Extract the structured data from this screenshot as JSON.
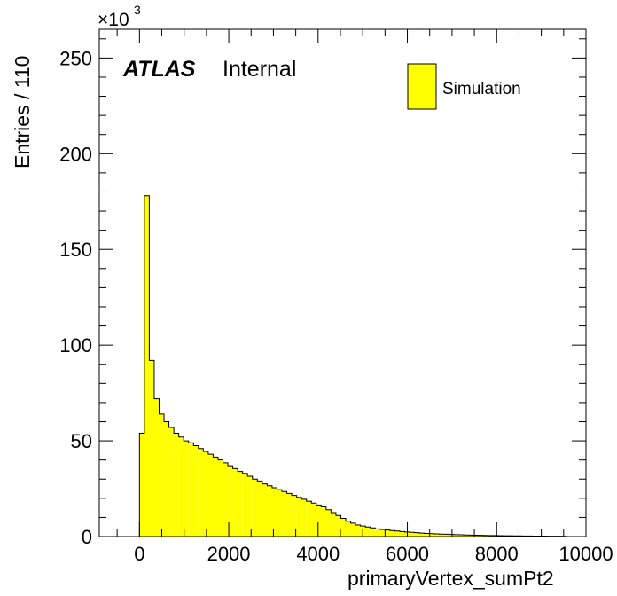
{
  "chart_data": {
    "type": "histogram",
    "xlabel": "primaryVertex_sumPt2",
    "ylabel": "Entries / 110",
    "y_multiplier_label": "×10",
    "y_multiplier_exponent": "3",
    "xlim": [
      -900,
      10000
    ],
    "ylim": [
      0,
      265
    ],
    "x_major_ticks": [
      0,
      2000,
      4000,
      6000,
      8000,
      10000
    ],
    "x_tick_labels": [
      "0",
      "2000",
      "4000",
      "6000",
      "8000",
      "10000"
    ],
    "y_major_ticks": [
      0,
      50,
      100,
      150,
      200,
      250
    ],
    "y_tick_labels": [
      "0",
      "50",
      "100",
      "150",
      "200",
      "250"
    ],
    "bin_width": 110,
    "bin_start": 0,
    "fill_color": "#ffff00",
    "line_color": "#000000",
    "values": [
      54,
      178,
      92,
      72,
      64,
      60,
      57,
      54,
      52,
      50,
      49,
      47.5,
      46,
      44.5,
      43,
      41.5,
      40,
      38.5,
      37,
      35.5,
      34,
      33,
      31.5,
      30,
      29,
      27.5,
      26.5,
      25.5,
      24.5,
      23.5,
      22.5,
      21.5,
      20.5,
      19.5,
      18.5,
      17.5,
      16.5,
      15.5,
      14,
      12.5,
      11,
      9.5,
      8,
      7,
      6,
      5.5,
      5,
      4.5,
      4,
      3.7,
      3.4,
      3.1,
      2.9,
      2.6,
      2.4,
      2.2,
      2,
      1.8,
      1.6,
      1.5,
      1.4,
      1.3,
      1.2,
      1.1,
      1,
      0.9,
      0.8,
      0.75,
      0.7,
      0.65,
      0.6,
      0.55,
      0.5,
      0.45,
      0.4,
      0.38,
      0.35,
      0.32,
      0.3,
      0.28,
      0.26,
      0.24,
      0.22,
      0.2,
      0.18,
      0.16,
      0.14
    ],
    "legend": {
      "entries": [
        {
          "label": "Simulation",
          "color": "#ffff00"
        }
      ],
      "position": "top-right"
    },
    "annotation": {
      "bold": "ATLAS",
      "plain": "Internal"
    },
    "grid": false
  }
}
